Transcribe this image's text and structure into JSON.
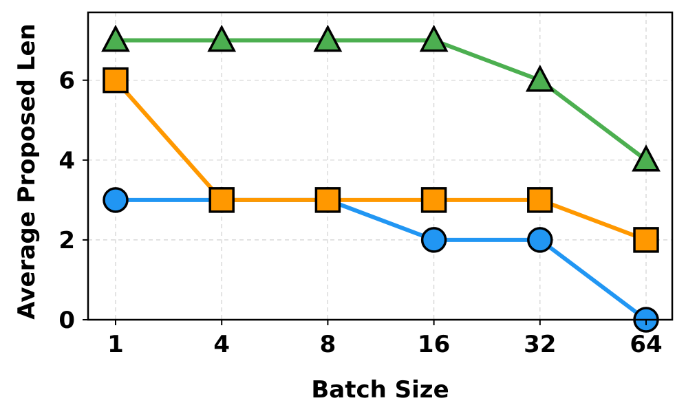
{
  "chart_data": {
    "type": "line",
    "title": "",
    "xlabel": "Batch Size",
    "ylabel": "Average Proposed Len",
    "categories": [
      "1",
      "4",
      "8",
      "16",
      "32",
      "64"
    ],
    "y_ticks": [
      "0",
      "2",
      "4",
      "6"
    ],
    "ylim": [
      0,
      7.7
    ],
    "grid": true,
    "legend": "none",
    "series": [
      {
        "color": "#2196F3",
        "marker": "circle",
        "values": [
          3,
          3,
          3,
          2,
          2,
          0
        ]
      },
      {
        "color": "#FF9800",
        "marker": "square",
        "values": [
          6,
          3,
          3,
          3,
          3,
          2
        ]
      },
      {
        "color": "#4CAF50",
        "marker": "triangle",
        "values": [
          7,
          7,
          7,
          7,
          6,
          4
        ]
      }
    ]
  }
}
